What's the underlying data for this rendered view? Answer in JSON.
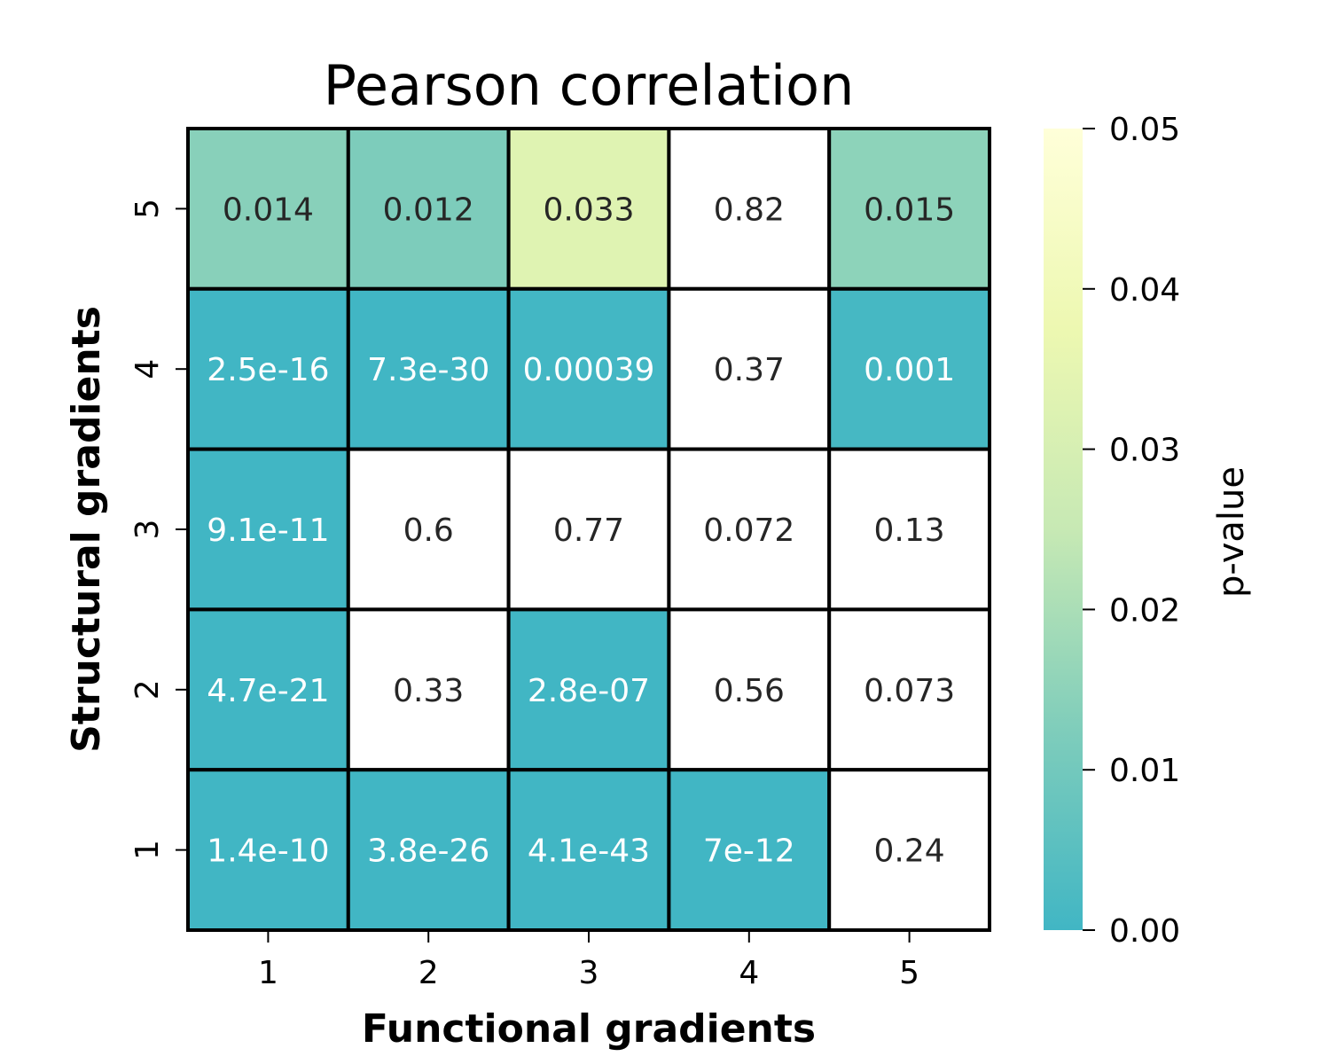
{
  "chart_data": {
    "type": "heatmap",
    "title": "Pearson correlation",
    "xlabel": "Functional gradients",
    "ylabel": "Structural gradients",
    "x_categories": [
      "1",
      "2",
      "3",
      "4",
      "5"
    ],
    "y_categories_top_to_bottom": [
      "5",
      "4",
      "3",
      "2",
      "1"
    ],
    "values_top_to_bottom": [
      [
        0.014,
        0.012,
        0.033,
        0.82,
        0.015
      ],
      [
        2.5e-16,
        7.3e-30,
        0.00039,
        0.37,
        0.001
      ],
      [
        9.1e-11,
        0.6,
        0.77,
        0.072,
        0.13
      ],
      [
        4.7e-21,
        0.33,
        2.8e-07,
        0.56,
        0.073
      ],
      [
        1.4e-10,
        3.8e-26,
        4.1e-43,
        7e-12,
        0.24
      ]
    ],
    "annotations_top_to_bottom": [
      [
        "0.014",
        "0.012",
        "0.033",
        "0.82",
        "0.015"
      ],
      [
        "2.5e-16",
        "7.3e-30",
        "0.00039",
        "0.37",
        "0.001"
      ],
      [
        "9.1e-11",
        "0.6",
        "0.77",
        "0.072",
        "0.13"
      ],
      [
        "4.7e-21",
        "0.33",
        "2.8e-07",
        "0.56",
        "0.073"
      ],
      [
        "1.4e-10",
        "3.8e-26",
        "4.1e-43",
        "7e-12",
        "0.24"
      ]
    ],
    "colorbar": {
      "label": "p-value",
      "range": [
        0,
        0.05
      ],
      "ticks": [
        "0.00",
        "0.01",
        "0.02",
        "0.03",
        "0.04",
        "0.05"
      ],
      "colormap": [
        "#41b6c4",
        "#7fcdbb",
        "#c7e9b4",
        "#edf8b1",
        "#ffffd9"
      ],
      "above_range_color": "#ffffff",
      "dark_text_color": "#262626",
      "light_text_color": "#ffffff"
    },
    "grid_line_color": "#000000",
    "legend": "colorbar-right"
  }
}
